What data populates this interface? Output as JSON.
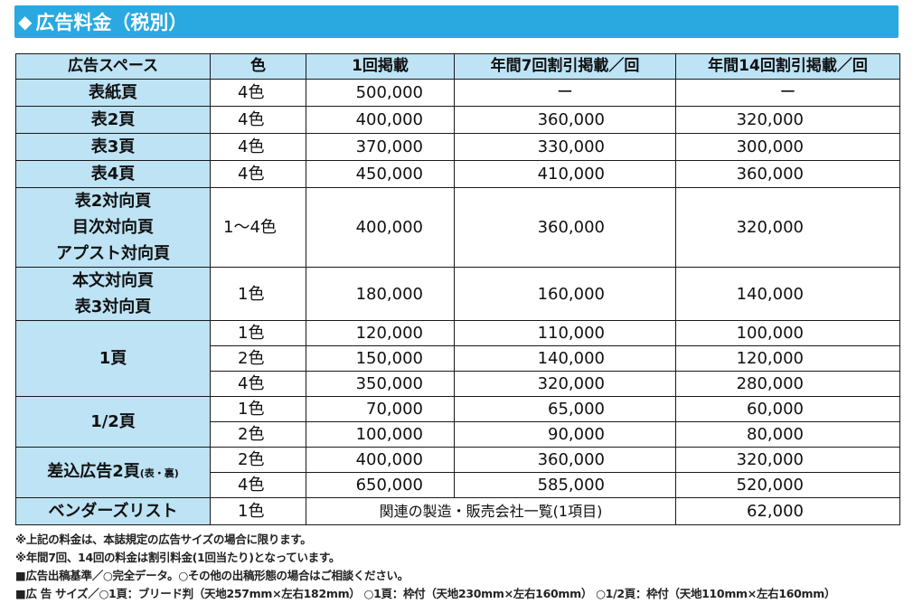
{
  "title": "広告料金（税別）",
  "title_icon": "diamond-icon",
  "accent_color": "#29a9e0",
  "header_color": "#bde3f5",
  "headers": [
    "広告スペース",
    "色",
    "1回掲載",
    "年間7回割引掲載／回",
    "年間14回割引掲載／回"
  ],
  "rows": [
    {
      "space": "表紙頁",
      "color": "4色",
      "once": "500,000",
      "y7": "ー",
      "y14": "ー"
    },
    {
      "space": "表2頁",
      "color": "4色",
      "once": "400,000",
      "y7": "360,000",
      "y14": "320,000"
    },
    {
      "space": "表3頁",
      "color": "4色",
      "once": "370,000",
      "y7": "330,000",
      "y14": "300,000"
    },
    {
      "space": "表4頁",
      "color": "4色",
      "once": "450,000",
      "y7": "410,000",
      "y14": "360,000"
    },
    {
      "space_lines": [
        "表2対向頁",
        "目次対向頁",
        "アプスト対向頁"
      ],
      "color": "1～4色",
      "once": "400,000",
      "y7": "360,000",
      "y14": "320,000"
    },
    {
      "space_lines": [
        "本文対向頁",
        "表3対向頁"
      ],
      "color": "1色",
      "once": "180,000",
      "y7": "160,000",
      "y14": "140,000"
    },
    {
      "space": "1頁",
      "sub": [
        {
          "color": "1色",
          "once": "120,000",
          "y7": "110,000",
          "y14": "100,000"
        },
        {
          "color": "2色",
          "once": "150,000",
          "y7": "140,000",
          "y14": "120,000"
        },
        {
          "color": "4色",
          "once": "350,000",
          "y7": "320,000",
          "y14": "280,000"
        }
      ]
    },
    {
      "space": "1/2頁",
      "sub": [
        {
          "color": "1色",
          "once": "70,000",
          "y7": "65,000",
          "y14": "60,000"
        },
        {
          "color": "2色",
          "once": "100,000",
          "y7": "90,000",
          "y14": "80,000"
        }
      ]
    },
    {
      "space": "差込広告2頁",
      "space_small": "(表・裏)",
      "sub": [
        {
          "color": "2色",
          "once": "400,000",
          "y7": "360,000",
          "y14": "320,000"
        },
        {
          "color": "4色",
          "once": "650,000",
          "y7": "585,000",
          "y14": "520,000"
        }
      ]
    },
    {
      "space": "ベンダーズリスト",
      "color": "1色",
      "span_note": "関連の製造・販売会社一覧(1項目)",
      "y14": "62,000"
    }
  ],
  "notes": [
    "※上記の料金は、本誌規定の広告サイズの場合に限ります。",
    "※年間7回、14回の料金は割引料金(1回当たり)となっています。",
    "■広告出稿基準／○完全データ。○その他の出稿形態の場合はご相談ください。",
    "■広 告 サイズ／○1頁：ブリード判（天地257mm×左右182mm） ○1頁：枠付（天地230mm×左右160mm） ○1/2頁：枠付（天地110mm×左右160mm）"
  ]
}
